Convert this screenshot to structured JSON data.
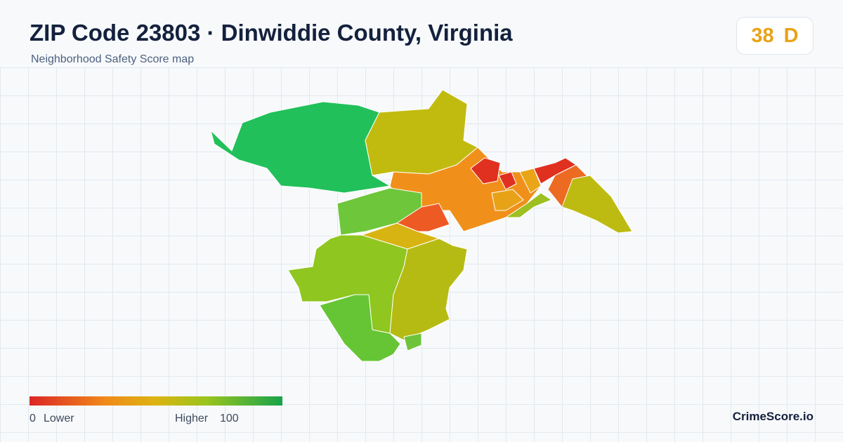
{
  "header": {
    "title": "ZIP Code 23803 · Dinwiddie County, Virginia",
    "subtitle": "Neighborhood Safety Score map"
  },
  "score": {
    "value": 38,
    "grade": "D"
  },
  "legend": {
    "min": 0,
    "min_label": "Lower",
    "max_label": "Higher",
    "max": 100
  },
  "brand": "CrimeScore.io"
}
